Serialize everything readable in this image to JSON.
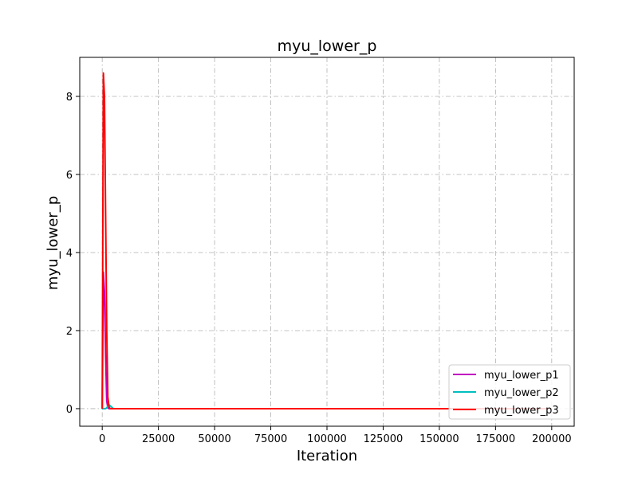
{
  "chart_data": {
    "type": "line",
    "title": "myu_lower_p",
    "xlabel": "Iteration",
    "ylabel": "myu_lower_p",
    "xlim": [
      -10000,
      210000
    ],
    "ylim": [
      -0.45,
      9.0
    ],
    "xticks": [
      0,
      25000,
      50000,
      75000,
      100000,
      125000,
      150000,
      175000,
      200000
    ],
    "xtick_labels": [
      "0",
      "25000",
      "50000",
      "75000",
      "100000",
      "125000",
      "150000",
      "175000",
      "200000"
    ],
    "yticks": [
      0,
      2,
      4,
      6,
      8
    ],
    "ytick_labels": [
      "0",
      "2",
      "4",
      "6",
      "8"
    ],
    "grid": true,
    "legend_position": "bottom-right",
    "series": [
      {
        "name": "myu_lower_p1",
        "color": "#bf00bf",
        "x": [
          0,
          500,
          1000,
          1500,
          2000,
          2500,
          3000,
          5000,
          200000
        ],
        "y": [
          0,
          3.5,
          3.0,
          1.4,
          0.2,
          0.02,
          0.0,
          0.0,
          0.0
        ]
      },
      {
        "name": "myu_lower_p2",
        "color": "#00bfbf",
        "x": [
          0,
          500,
          1000,
          1500,
          2000,
          2500,
          3000,
          3400,
          5000,
          200000
        ],
        "y": [
          0,
          0.0,
          0.0,
          0.0,
          0.02,
          0.06,
          0.1,
          0.08,
          0.0,
          0.0
        ]
      },
      {
        "name": "myu_lower_p3",
        "color": "#ff0000",
        "x": [
          0,
          500,
          1000,
          1500,
          2000,
          2500,
          3000,
          3500,
          5000,
          200000
        ],
        "y": [
          0,
          8.6,
          8.0,
          5.0,
          2.0,
          0.3,
          0.05,
          0.0,
          0.0,
          0.0
        ]
      }
    ]
  }
}
